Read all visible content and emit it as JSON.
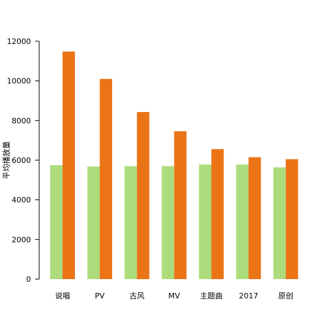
{
  "chart_data": {
    "type": "bar",
    "title": "",
    "xlabel": "",
    "ylabel": "平均播放量",
    "ylim": [
      0,
      12000
    ],
    "yticks": [
      0,
      2000,
      4000,
      6000,
      8000,
      10000,
      12000
    ],
    "grid": false,
    "legend": "none",
    "categories": [
      "说唱",
      "PV",
      "古风",
      "MV",
      "主题曲",
      "2017",
      "原创"
    ],
    "series": [
      {
        "color": "#addc7c",
        "values": [
          5750,
          5680,
          5700,
          5700,
          5780,
          5780,
          5640
        ]
      },
      {
        "color": "#eb7417",
        "values": [
          11480,
          10100,
          8430,
          7460,
          6560,
          6150,
          6050
        ]
      }
    ]
  }
}
